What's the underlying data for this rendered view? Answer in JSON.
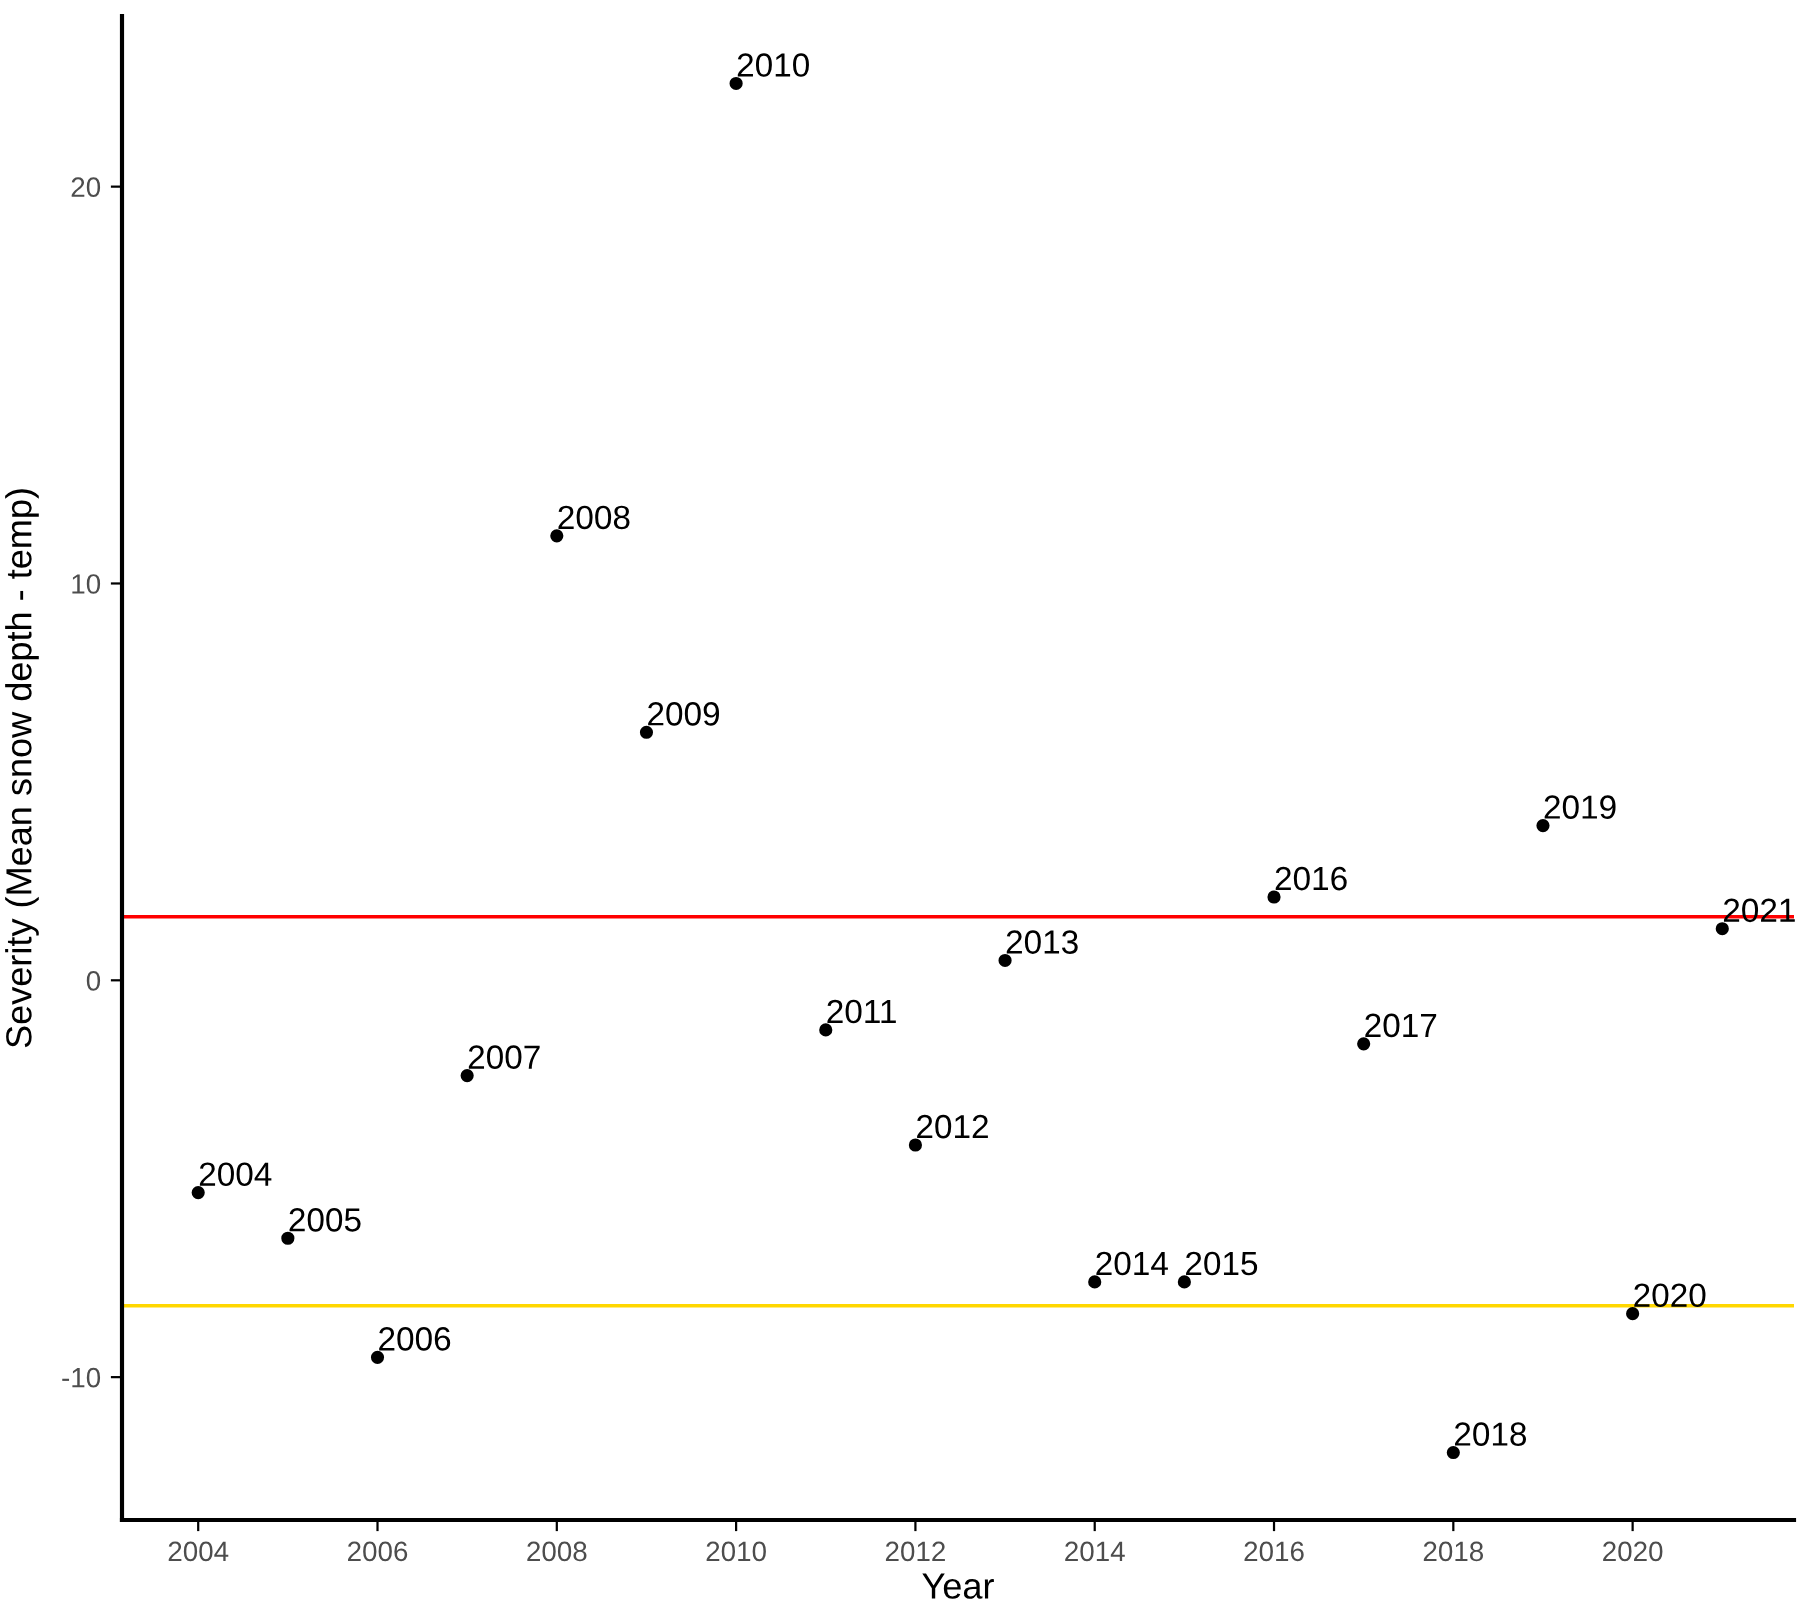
{
  "chart_data": {
    "type": "scatter",
    "xlabel": "Year",
    "ylabel": "Severity (Mean snow depth - temp)",
    "x": [
      2004,
      2005,
      2006,
      2007,
      2008,
      2009,
      2010,
      2011,
      2012,
      2013,
      2014,
      2015,
      2016,
      2017,
      2018,
      2019,
      2020,
      2021
    ],
    "values": [
      -5.35,
      -6.5,
      -9.5,
      -2.4,
      11.2,
      6.25,
      22.6,
      -1.25,
      -4.15,
      0.5,
      -7.6,
      -7.6,
      2.1,
      -1.6,
      -11.9,
      3.9,
      -8.4,
      1.3
    ],
    "annotations": [
      {
        "text": "2004",
        "x": 2004,
        "y": -5.35
      },
      {
        "text": "2005",
        "x": 2005,
        "y": -6.5
      },
      {
        "text": "2006",
        "x": 2006,
        "y": -9.5
      },
      {
        "text": "2007",
        "x": 2007,
        "y": -2.4
      },
      {
        "text": "2008",
        "x": 2008,
        "y": 11.2
      },
      {
        "text": "2009",
        "x": 2009,
        "y": 6.25
      },
      {
        "text": "2010",
        "x": 2010,
        "y": 22.6
      },
      {
        "text": "2011",
        "x": 2011,
        "y": -1.25
      },
      {
        "text": "2012",
        "x": 2012,
        "y": -4.15
      },
      {
        "text": "2013",
        "x": 2013,
        "y": 0.5
      },
      {
        "text": "2014",
        "x": 2014,
        "y": -7.6
      },
      {
        "text": "2015",
        "x": 2015,
        "y": -7.6
      },
      {
        "text": "2016",
        "x": 2016,
        "y": 2.1
      },
      {
        "text": "2017",
        "x": 2017,
        "y": -1.6
      },
      {
        "text": "2018",
        "x": 2018,
        "y": -11.9
      },
      {
        "text": "2019",
        "x": 2019,
        "y": 3.9
      },
      {
        "text": "2020",
        "x": 2020,
        "y": -8.4
      },
      {
        "text": "2021",
        "x": 2021,
        "y": 1.3
      }
    ],
    "color": "#000000",
    "marker": "circle",
    "xlim": [
      2003.15,
      2021.8
    ],
    "xticks": [
      2004,
      2006,
      2008,
      2010,
      2012,
      2014,
      2016,
      2018,
      2020
    ],
    "ylim": [
      -13.6,
      24.3
    ],
    "yticks": [
      -10,
      0,
      10,
      20
    ],
    "ref_lines": [
      {
        "axis": "y",
        "value": 1.6,
        "color": "#ff0000"
      },
      {
        "axis": "y",
        "value": -8.2,
        "color": "#ffd700"
      }
    ],
    "grid": false,
    "legend": false
  }
}
